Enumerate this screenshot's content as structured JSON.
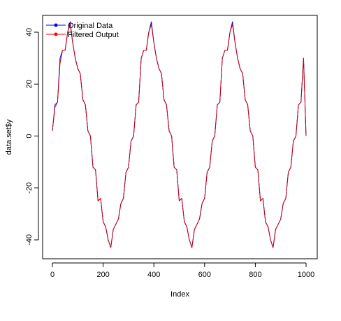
{
  "chart_data": {
    "type": "line",
    "title": "",
    "xlabel": "Index",
    "ylabel": "data.set$y",
    "xlim": [
      0,
      1000
    ],
    "ylim": [
      -45,
      45
    ],
    "x_ticks": [
      "0",
      "200",
      "400",
      "600",
      "800",
      "1000"
    ],
    "y_ticks": [
      "-40",
      "-20",
      "0",
      "20",
      "40"
    ],
    "grid": false,
    "legend": {
      "placement": "top-left",
      "entries": [
        {
          "label": "Original Data",
          "color": "#0000ff"
        },
        {
          "label": "Filtered Output",
          "color": "#ff0000"
        }
      ]
    },
    "series": [
      {
        "name": "Original Data",
        "color": "#0000ff",
        "x": [
          0,
          10,
          20,
          30,
          40,
          50,
          60,
          70,
          80,
          90,
          100,
          110,
          120,
          130,
          140,
          150,
          160,
          170,
          180,
          190,
          200,
          210,
          220,
          230,
          240,
          250,
          260,
          270,
          280,
          290,
          300,
          310,
          320,
          330,
          340,
          350,
          360,
          370,
          380,
          390,
          400,
          410,
          420,
          430,
          440,
          450,
          460,
          470,
          480,
          490,
          500,
          510,
          520,
          530,
          540,
          550,
          560,
          570,
          580,
          590,
          600,
          610,
          620,
          630,
          640,
          650,
          660,
          670,
          680,
          690,
          700,
          710,
          720,
          730,
          740,
          750,
          760,
          770,
          780,
          790,
          800,
          810,
          820,
          830,
          840,
          850,
          860,
          870,
          880,
          890,
          900,
          910,
          920,
          930,
          940,
          950,
          960,
          970,
          980,
          990,
          1000
        ],
        "y": [
          2,
          12,
          13,
          30,
          33,
          33,
          40,
          44,
          36,
          30,
          26,
          24,
          14,
          12,
          2,
          0,
          -12,
          -13,
          -25,
          -24,
          -33,
          -35,
          -40,
          -43,
          -36,
          -34,
          -32,
          -26,
          -24,
          -14,
          -12,
          -2,
          0,
          12,
          13,
          30,
          33,
          33,
          40,
          44,
          36,
          30,
          26,
          24,
          14,
          12,
          2,
          0,
          -12,
          -13,
          -25,
          -24,
          -33,
          -35,
          -40,
          -43,
          -36,
          -34,
          -32,
          -26,
          -24,
          -14,
          -12,
          -2,
          0,
          12,
          13,
          30,
          33,
          33,
          40,
          44,
          36,
          30,
          26,
          24,
          14,
          12,
          2,
          0,
          -12,
          -13,
          -25,
          -24,
          -33,
          -35,
          -40,
          -43,
          -36,
          -34,
          -32,
          -26,
          -24,
          -14,
          -12,
          -2,
          0,
          12,
          13,
          30,
          0
        ]
      },
      {
        "name": "Filtered Output",
        "color": "#cc0000",
        "x": [
          0,
          10,
          20,
          30,
          40,
          50,
          60,
          70,
          80,
          90,
          100,
          110,
          120,
          130,
          140,
          150,
          160,
          170,
          180,
          190,
          200,
          210,
          220,
          230,
          240,
          250,
          260,
          270,
          280,
          290,
          300,
          310,
          320,
          330,
          340,
          350,
          360,
          370,
          380,
          390,
          400,
          410,
          420,
          430,
          440,
          450,
          460,
          470,
          480,
          490,
          500,
          510,
          520,
          530,
          540,
          550,
          560,
          570,
          580,
          590,
          600,
          610,
          620,
          630,
          640,
          650,
          660,
          670,
          680,
          690,
          700,
          710,
          720,
          730,
          740,
          750,
          760,
          770,
          780,
          790,
          800,
          810,
          820,
          830,
          840,
          850,
          860,
          870,
          880,
          890,
          900,
          910,
          920,
          930,
          940,
          950,
          960,
          970,
          980,
          990,
          1000
        ],
        "y": [
          2,
          11,
          13,
          28,
          33,
          33,
          40,
          43,
          36,
          30,
          26,
          24,
          14,
          12,
          2,
          0,
          -12,
          -13,
          -25,
          -24,
          -33,
          -35,
          -40,
          -43,
          -36,
          -34,
          -32,
          -26,
          -24,
          -14,
          -12,
          -2,
          0,
          12,
          13,
          30,
          33,
          33,
          40,
          43,
          36,
          30,
          26,
          24,
          14,
          12,
          2,
          0,
          -12,
          -13,
          -25,
          -24,
          -33,
          -35,
          -40,
          -43,
          -36,
          -34,
          -32,
          -26,
          -24,
          -14,
          -12,
          -2,
          0,
          12,
          13,
          30,
          33,
          33,
          40,
          43,
          36,
          30,
          26,
          24,
          14,
          12,
          2,
          0,
          -12,
          -13,
          -25,
          -24,
          -33,
          -35,
          -40,
          -43,
          -36,
          -34,
          -32,
          -26,
          -24,
          -14,
          -12,
          -2,
          0,
          12,
          13,
          30,
          0
        ]
      }
    ]
  }
}
